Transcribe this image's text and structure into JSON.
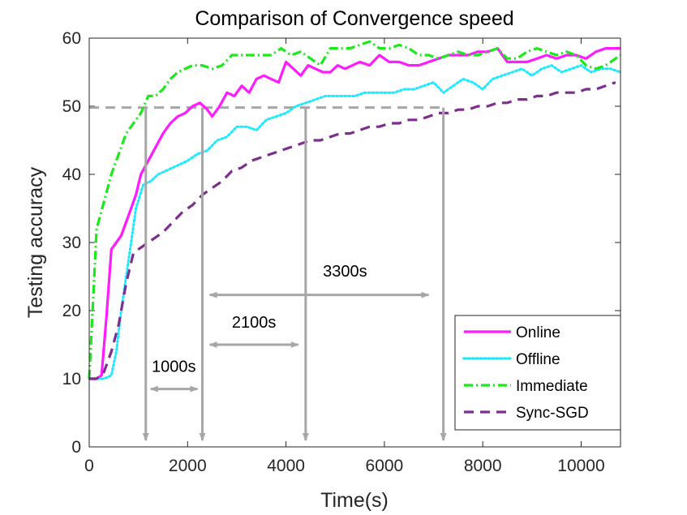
{
  "chart_data": {
    "type": "line",
    "title": "Comparison of Convergence speed",
    "xlabel": "Time(s)",
    "ylabel": "Testing accuracy",
    "xlim": [
      0,
      10800
    ],
    "ylim": [
      0,
      60
    ],
    "xticks": [
      0,
      2000,
      4000,
      6000,
      8000,
      10000
    ],
    "yticks": [
      0,
      10,
      20,
      30,
      40,
      50,
      60
    ],
    "legend_position": "bottom-right",
    "series": [
      {
        "name": "Online",
        "color": "#ff1aff",
        "style": "solid",
        "x": [
          0,
          150,
          250,
          350,
          450,
          550,
          650,
          750,
          850,
          950,
          1050,
          1200,
          1350,
          1500,
          1650,
          1800,
          1950,
          2100,
          2250,
          2400,
          2500,
          2650,
          2800,
          2950,
          3100,
          3250,
          3400,
          3550,
          3700,
          3850,
          4000,
          4150,
          4300,
          4450,
          4600,
          4750,
          4900,
          5050,
          5200,
          5350,
          5500,
          5700,
          5900,
          6100,
          6300,
          6500,
          6700,
          6900,
          7100,
          7300,
          7500,
          7700,
          7900,
          8100,
          8300,
          8500,
          8700,
          8900,
          9100,
          9300,
          9500,
          9700,
          9900,
          10100,
          10300,
          10500,
          10700,
          10800
        ],
        "values": [
          10,
          10,
          10.5,
          19,
          29,
          30,
          31,
          33,
          35,
          37,
          40,
          42,
          44,
          46,
          47.5,
          48.5,
          49,
          50,
          50.5,
          49.5,
          48.5,
          50,
          52,
          51.5,
          53,
          52,
          54,
          54.5,
          54,
          53.5,
          56.5,
          55.5,
          54.5,
          56,
          55.5,
          55,
          55,
          56,
          55.5,
          56,
          56.5,
          56,
          57.5,
          56.5,
          56.5,
          56,
          56,
          56.5,
          57,
          57.5,
          57.5,
          57.5,
          58,
          58,
          58.5,
          56.5,
          56.5,
          56.5,
          57,
          57.5,
          57,
          57.5,
          57.5,
          57,
          58,
          58.5,
          58.5,
          58.5
        ]
      },
      {
        "name": "Offline",
        "color": "#1aeaff",
        "style": "dotted",
        "x": [
          0,
          150,
          300,
          450,
          550,
          650,
          750,
          850,
          950,
          1100,
          1250,
          1400,
          1550,
          1700,
          1850,
          2000,
          2200,
          2400,
          2600,
          2800,
          3000,
          3200,
          3400,
          3600,
          3800,
          4000,
          4200,
          4400,
          4600,
          4800,
          5000,
          5200,
          5400,
          5600,
          5800,
          6000,
          6200,
          6400,
          6600,
          6800,
          7000,
          7200,
          7400,
          7600,
          7800,
          8000,
          8200,
          8400,
          8600,
          8800,
          9000,
          9200,
          9400,
          9600,
          9800,
          10000,
          10200,
          10400,
          10600,
          10800
        ],
        "values": [
          10,
          10,
          10,
          10.5,
          14,
          20,
          25,
          30,
          35,
          38.5,
          39,
          40,
          40.5,
          41,
          41.5,
          42,
          43,
          43.5,
          45,
          45.5,
          47,
          47,
          46.5,
          48,
          48.5,
          49,
          50,
          50.5,
          51,
          51.5,
          51.5,
          51.5,
          51.5,
          52,
          52,
          52,
          52,
          52.5,
          52.5,
          53,
          53.5,
          52,
          53,
          54,
          53.5,
          52.5,
          54,
          54.5,
          55,
          55.5,
          54.5,
          55.5,
          56,
          55,
          55.5,
          56,
          55,
          55.5,
          55.5,
          55
        ]
      },
      {
        "name": "Immediate",
        "color": "#1aea1a",
        "style": "dashdot",
        "x": [
          0,
          150,
          300,
          450,
          600,
          750,
          900,
          1050,
          1200,
          1350,
          1500,
          1650,
          1800,
          1950,
          2100,
          2300,
          2500,
          2700,
          2900,
          3100,
          3300,
          3500,
          3700,
          3900,
          4100,
          4300,
          4500,
          4700,
          4900,
          5100,
          5300,
          5500,
          5700,
          5900,
          6100,
          6300,
          6500,
          6700,
          6900,
          7100,
          7300,
          7500,
          7700,
          7900,
          8100,
          8300,
          8500,
          8700,
          8900,
          9100,
          9300,
          9500,
          9700,
          9900,
          10100,
          10300,
          10500,
          10700,
          10800
        ],
        "values": [
          10,
          32,
          36,
          40,
          43,
          46,
          47.5,
          49,
          51.5,
          51.5,
          52.5,
          54,
          55,
          55.5,
          56,
          56,
          55.5,
          56,
          57.5,
          57.5,
          57.5,
          57.5,
          57.5,
          58.5,
          57.5,
          58,
          57,
          56,
          58.5,
          58.5,
          58.5,
          59,
          59.5,
          58.5,
          58.5,
          59,
          58.5,
          57.5,
          57.5,
          57,
          57.5,
          58,
          57.5,
          57.5,
          58,
          58.5,
          57,
          57,
          58,
          58.5,
          58,
          57.5,
          58,
          57.5,
          56,
          55.5,
          56,
          57,
          57.5
        ]
      },
      {
        "name": "Sync-SGD",
        "color": "#7e2f8e",
        "style": "dashed",
        "x": [
          0,
          150,
          300,
          450,
          600,
          750,
          900,
          1100,
          1300,
          1500,
          1700,
          1900,
          2100,
          2300,
          2500,
          2700,
          2900,
          3100,
          3300,
          3500,
          3700,
          3900,
          4100,
          4300,
          4500,
          4700,
          4900,
          5100,
          5300,
          5500,
          5700,
          5900,
          6100,
          6300,
          6500,
          6700,
          6900,
          7100,
          7300,
          7500,
          7700,
          7900,
          8100,
          8300,
          8500,
          8700,
          8900,
          9100,
          9300,
          9500,
          9700,
          9900,
          10100,
          10300,
          10500,
          10700
        ],
        "values": [
          10,
          10,
          11,
          14,
          18,
          24,
          28.5,
          29.5,
          30.5,
          31.5,
          33,
          34.5,
          35.5,
          37,
          38,
          39,
          40.5,
          41,
          42,
          42.5,
          43,
          43.5,
          44,
          44.5,
          45,
          45,
          45.5,
          46,
          46,
          46.5,
          47,
          47,
          47.5,
          47.5,
          48,
          48,
          48.5,
          49,
          49,
          49.5,
          49.5,
          50,
          50,
          50.5,
          50.5,
          51,
          51,
          51.5,
          51.5,
          52,
          52,
          52,
          52.5,
          52.5,
          53,
          53.5
        ]
      }
    ],
    "reference_line": {
      "y": 49.8,
      "color": "#a6a6a6"
    },
    "vertical_arrows_x": [
      1150,
      2300,
      4400,
      7200
    ],
    "annotations": [
      {
        "text": "1000s",
        "x1": 1250,
        "x2": 2200,
        "y": 8.5,
        "text_x": 1720,
        "text_y": 11
      },
      {
        "text": "2100s",
        "x1": 2450,
        "x2": 4250,
        "y": 15,
        "text_x": 3350,
        "text_y": 17.5
      },
      {
        "text": "3300s",
        "x1": 2450,
        "x2": 6900,
        "y": 22.3,
        "text_x": 5200,
        "text_y": 25
      }
    ]
  }
}
